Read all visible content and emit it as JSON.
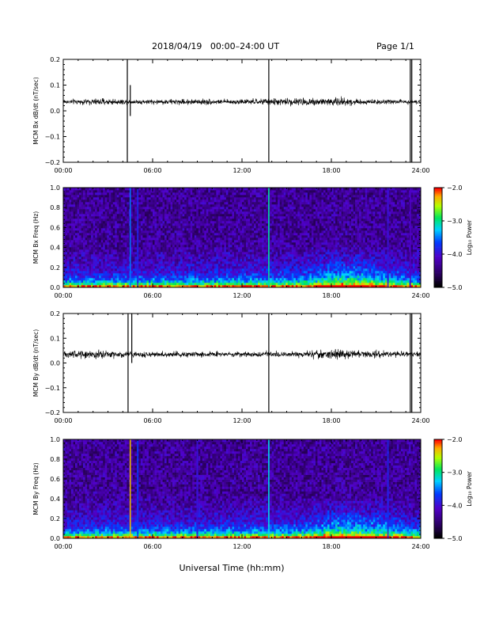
{
  "header": {
    "title": "2018/04/19   00:00–24:00 UT",
    "page": "Page 1/1"
  },
  "xlabel": "Universal Time (hh:mm)",
  "chart_data": [
    {
      "type": "line",
      "ylabel": "MCM Bx dB/dt (nT/sec)",
      "ylim": [
        -0.2,
        0.2
      ],
      "yticks": [
        "0.2",
        "0.1",
        "0.0",
        "−0.1",
        "−0.2"
      ],
      "xlim_hours": [
        0,
        24
      ],
      "xticks": [
        "00:00",
        "06:00",
        "12:00",
        "18:00",
        "24:00"
      ],
      "baseline": 0.035,
      "noise": [
        [
          0,
          0.006
        ],
        [
          3,
          0.009
        ],
        [
          4.2,
          0.006
        ],
        [
          9.5,
          0.008
        ],
        [
          10.5,
          0.006
        ],
        [
          17,
          0.011
        ],
        [
          18.5,
          0.013
        ],
        [
          20,
          0.007
        ],
        [
          24,
          0.006
        ]
      ],
      "spikes": [
        {
          "t": 4.3,
          "high": 0.2,
          "low": -0.2
        },
        {
          "t": 4.5,
          "high": 0.1,
          "low": -0.02
        },
        {
          "t": 13.8,
          "high": 0.2,
          "low": -0.2
        },
        {
          "t": 23.3,
          "high": 0.2,
          "low": -0.2
        },
        {
          "t": 23.4,
          "high": 0.2,
          "low": -0.2
        }
      ]
    },
    {
      "type": "heatmap",
      "ylabel": "MCM Bx Freq (Hz)",
      "ylim": [
        0,
        1.0
      ],
      "yticks": [
        "1.0",
        "0.8",
        "0.6",
        "0.4",
        "0.2",
        "0.0"
      ],
      "xlim_hours": [
        0,
        24
      ],
      "xticks": [
        "00:00",
        "06:00",
        "12:00",
        "18:00",
        "24:00"
      ],
      "colorbar": {
        "label": "Log₁₀ Power",
        "range": [
          -5.0,
          -2.0
        ],
        "ticks": [
          "−2.0",
          "−3.0",
          "−4.0",
          "−5.0"
        ]
      },
      "enhancement": [
        [
          0,
          0.1
        ],
        [
          16,
          0.15
        ],
        [
          18,
          0.3
        ],
        [
          20,
          0.3
        ],
        [
          22,
          0.2
        ],
        [
          24,
          0.1
        ]
      ],
      "lines": [
        {
          "t": 4.5,
          "level": 0.5
        },
        {
          "t": 5.0,
          "level": 0.4
        },
        {
          "t": 13.8,
          "level": 0.65
        },
        {
          "t": 21.8,
          "level": 0.35
        },
        {
          "t": 23.3,
          "level": 0.3
        }
      ]
    },
    {
      "type": "line",
      "ylabel": "MCM By dB/dt (nT/sec)",
      "ylim": [
        -0.2,
        0.2
      ],
      "yticks": [
        "0.2",
        "0.1",
        "0.0",
        "−0.1",
        "−0.2"
      ],
      "xlim_hours": [
        0,
        24
      ],
      "xticks": [
        "00:00",
        "06:00",
        "12:00",
        "18:00",
        "24:00"
      ],
      "baseline": 0.035,
      "noise": [
        [
          0,
          0.01
        ],
        [
          2,
          0.012
        ],
        [
          4.2,
          0.009
        ],
        [
          6,
          0.007
        ],
        [
          9.8,
          0.009
        ],
        [
          11,
          0.006
        ],
        [
          16,
          0.009
        ],
        [
          18,
          0.014
        ],
        [
          20,
          0.011
        ],
        [
          22,
          0.008
        ],
        [
          24,
          0.008
        ]
      ],
      "spikes": [
        {
          "t": 4.35,
          "high": 0.2,
          "low": -0.2
        },
        {
          "t": 4.6,
          "high": 0.2,
          "low": 0.0
        },
        {
          "t": 13.8,
          "high": 0.2,
          "low": -0.2
        },
        {
          "t": 23.3,
          "high": 0.2,
          "low": -0.2
        },
        {
          "t": 23.4,
          "high": 0.2,
          "low": -0.2
        }
      ]
    },
    {
      "type": "heatmap",
      "ylabel": "MCM By Freq (Hz)",
      "ylim": [
        0,
        1.0
      ],
      "yticks": [
        "1.0",
        "0.8",
        "0.6",
        "0.4",
        "0.2",
        "0.0"
      ],
      "xlim_hours": [
        0,
        24
      ],
      "xticks": [
        "00:00",
        "06:00",
        "12:00",
        "18:00",
        "24:00"
      ],
      "colorbar": {
        "label": "Log₁₀ Power",
        "range": [
          -5.0,
          -2.0
        ],
        "ticks": [
          "−2.0",
          "−3.0",
          "−4.0",
          "−5.0"
        ]
      },
      "enhancement": [
        [
          0,
          0.1
        ],
        [
          16,
          0.15
        ],
        [
          18,
          0.3
        ],
        [
          20,
          0.28
        ],
        [
          22,
          0.22
        ],
        [
          24,
          0.1
        ]
      ],
      "lines": [
        {
          "t": 4.5,
          "level": 0.9
        },
        {
          "t": 5.0,
          "level": 0.45
        },
        {
          "t": 9.0,
          "level": 0.35
        },
        {
          "t": 13.8,
          "level": 0.6
        },
        {
          "t": 21.8,
          "level": 0.4
        }
      ]
    }
  ]
}
